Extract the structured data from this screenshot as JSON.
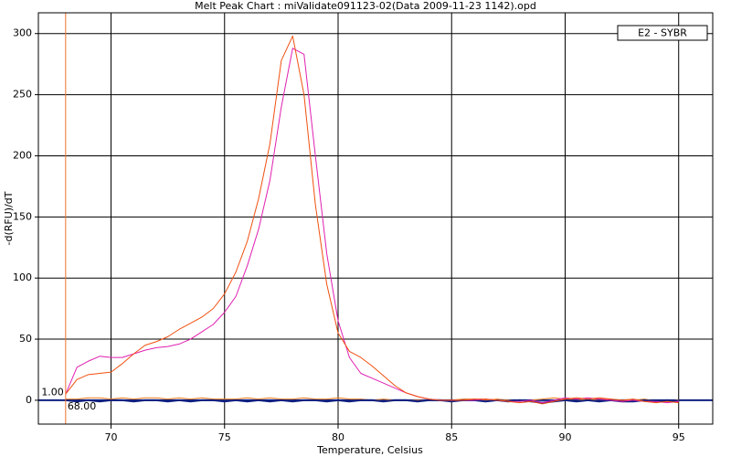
{
  "chart_data": {
    "type": "line",
    "title": "Melt Peak Chart : miValidate091123-02(Data 2009-11-23 1142).opd",
    "xlabel": "Temperature, Celsius",
    "ylabel": "-d(RFU)/dT",
    "legend_label": "E2 - SYBR",
    "legend_position": "upper right",
    "grid": true,
    "xlim": [
      66.8,
      96.5
    ],
    "ylim": [
      -19.5,
      317
    ],
    "xticks": [
      70,
      75,
      80,
      85,
      90,
      95
    ],
    "yticks": [
      0,
      50,
      100,
      150,
      200,
      250,
      300
    ],
    "cursor_x": {
      "value": 68,
      "label": "68.00"
    },
    "cursor_y": {
      "value": 1,
      "label": "1.00"
    },
    "cursor_color": "#f07030",
    "baseline_color": "#102080",
    "x": [
      68,
      68.5,
      69,
      69.5,
      70,
      70.5,
      71,
      71.5,
      72,
      72.5,
      73,
      73.5,
      74,
      74.5,
      75,
      75.5,
      76,
      76.5,
      77,
      77.5,
      78,
      78.5,
      79,
      79.5,
      80,
      80.5,
      81,
      81.5,
      82,
      82.5,
      83,
      83.5,
      84,
      84.5,
      85,
      85.5,
      86,
      86.5,
      87,
      87.5,
      88,
      88.5,
      89,
      89.5,
      90,
      90.5,
      91,
      91.5,
      92,
      92.5,
      93,
      93.5,
      94,
      94.5,
      95
    ],
    "series": [
      {
        "color": "#f08020",
        "width": 1,
        "values": [
          1,
          1,
          2,
          2,
          1,
          2,
          1,
          2,
          2,
          1,
          2,
          1,
          2,
          1,
          1,
          1,
          2,
          1,
          2,
          1,
          1,
          2,
          1,
          1,
          2,
          1,
          1,
          0,
          1,
          0,
          0,
          0,
          0,
          0,
          0,
          1,
          1,
          0,
          1,
          0,
          -1,
          0,
          1,
          2,
          1,
          1,
          0,
          1,
          1,
          0,
          0,
          1,
          -1,
          -1,
          0
        ]
      },
      {
        "color": "#102080",
        "width": 2,
        "values": [
          0,
          -1,
          0,
          -1,
          0,
          0,
          -1,
          0,
          0,
          -1,
          0,
          -1,
          0,
          0,
          -1,
          0,
          -1,
          0,
          -1,
          0,
          -1,
          0,
          0,
          -1,
          0,
          -1,
          0,
          0,
          -1,
          0,
          0,
          -1,
          0,
          0,
          -1,
          0,
          0,
          -1,
          0,
          -1,
          0,
          -1,
          -2,
          -1,
          0,
          -1,
          0,
          -1,
          0,
          -1,
          -1,
          0,
          -1,
          0,
          -1
        ]
      },
      {
        "color": "#e020b0",
        "width": 1,
        "values": [
          5,
          27,
          32,
          36,
          35,
          35,
          38,
          41,
          43,
          44,
          46,
          50,
          56,
          62,
          72,
          85,
          110,
          140,
          180,
          240,
          288,
          283,
          200,
          120,
          65,
          35,
          22,
          18,
          14,
          10,
          6,
          3,
          1,
          0,
          0,
          0,
          0,
          1,
          0,
          -1,
          -1,
          0,
          -2,
          0,
          2,
          1,
          2,
          1,
          0,
          -1,
          0,
          -1,
          -1,
          -2,
          -1
        ]
      },
      {
        "color": "#f05010",
        "width": 1,
        "values": [
          5,
          17,
          21,
          22,
          23,
          30,
          38,
          45,
          48,
          52,
          58,
          63,
          68,
          75,
          87,
          105,
          130,
          165,
          210,
          278,
          298,
          250,
          160,
          95,
          55,
          40,
          35,
          28,
          20,
          12,
          6,
          3,
          1,
          0,
          0,
          0,
          1,
          1,
          0,
          -1,
          -2,
          -1,
          -3,
          -1,
          1,
          2,
          1,
          2,
          1,
          0,
          1,
          -1,
          -2,
          -1,
          -2
        ]
      }
    ]
  }
}
